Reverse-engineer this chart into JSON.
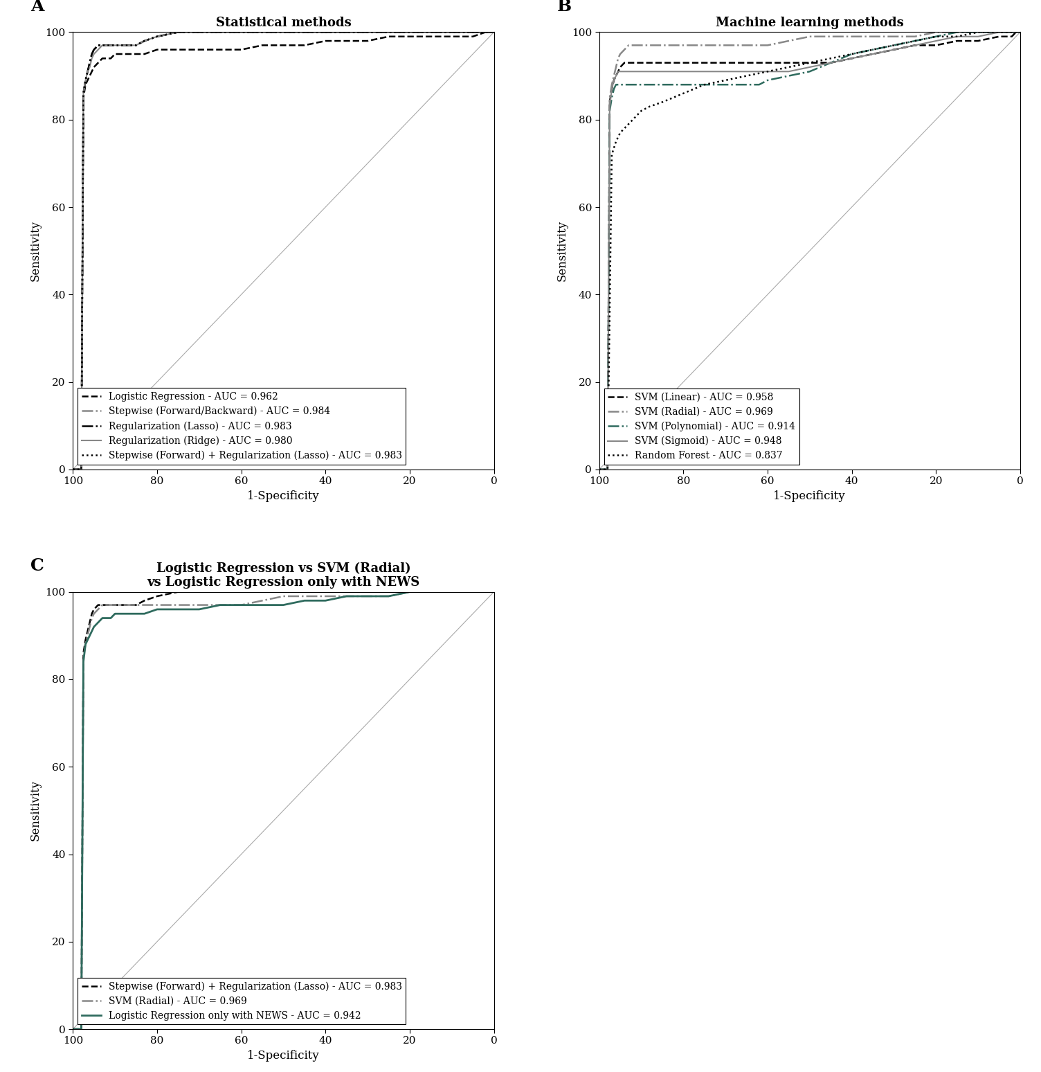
{
  "panel_A": {
    "title": "Statistical methods",
    "curves": [
      {
        "label": "Logistic Regression - AUC = 0.962",
        "color": "#000000",
        "linestyle": "dashed",
        "linewidth": 1.8,
        "dashes": [
          6,
          3
        ],
        "x": [
          100,
          98,
          97.5,
          97,
          96.5,
          96,
          95.5,
          95,
          94,
          93,
          92,
          91,
          90,
          89,
          88,
          87,
          86,
          85,
          83,
          80,
          75,
          70,
          65,
          60,
          55,
          50,
          45,
          40,
          35,
          30,
          25,
          20,
          15,
          10,
          5,
          2,
          1,
          0
        ],
        "y": [
          0,
          0,
          85,
          88,
          89,
          90,
          91,
          92,
          93,
          94,
          94,
          94,
          95,
          95,
          95,
          95,
          95,
          95,
          95,
          96,
          96,
          96,
          96,
          96,
          97,
          97,
          97,
          98,
          98,
          98,
          99,
          99,
          99,
          99,
          99,
          100,
          100,
          100
        ]
      },
      {
        "label": "Stepwise (Forward/Backward) - AUC = 0.984",
        "color": "#888888",
        "linestyle": "dashdot",
        "linewidth": 1.8,
        "dashes": [
          6,
          2,
          1,
          2
        ],
        "x": [
          100,
          98,
          97.5,
          97,
          96.5,
          96,
          95.5,
          95,
          94,
          93,
          92,
          91,
          90,
          89,
          88,
          87,
          86,
          85,
          83,
          80,
          75,
          70,
          65,
          60,
          55,
          50,
          45,
          40,
          35,
          30,
          25,
          20,
          15,
          10,
          5,
          2,
          1,
          0
        ],
        "y": [
          0,
          0,
          86,
          89,
          91,
          93,
          95,
          96,
          97,
          97,
          97,
          97,
          97,
          97,
          97,
          97,
          97,
          97,
          98,
          99,
          100,
          100,
          100,
          100,
          100,
          100,
          100,
          100,
          100,
          100,
          100,
          100,
          100,
          100,
          100,
          100,
          100,
          100
        ]
      },
      {
        "label": "Regularization (Lasso) - AUC = 0.983",
        "color": "#000000",
        "linestyle": "dashdot",
        "linewidth": 1.8,
        "dashes": [
          4,
          2,
          1,
          2
        ],
        "x": [
          100,
          98,
          97.5,
          97,
          96.5,
          96,
          95.5,
          95,
          94,
          93,
          92,
          91,
          90,
          89,
          88,
          87,
          86,
          85,
          83,
          80,
          75,
          70,
          65,
          60,
          55,
          50,
          45,
          40,
          35,
          30,
          25,
          20,
          15,
          10,
          5,
          2,
          1,
          0
        ],
        "y": [
          0,
          0,
          86,
          89,
          91,
          93,
          95,
          96,
          97,
          97,
          97,
          97,
          97,
          97,
          97,
          97,
          97,
          97,
          98,
          99,
          100,
          100,
          100,
          100,
          100,
          100,
          100,
          100,
          100,
          100,
          100,
          100,
          100,
          100,
          100,
          100,
          100,
          100
        ]
      },
      {
        "label": "Regularization (Ridge) - AUC = 0.980",
        "color": "#888888",
        "linestyle": "solid",
        "linewidth": 1.5,
        "dashes": [],
        "x": [
          100,
          98,
          97.5,
          97,
          96.5,
          96,
          95.5,
          95,
          94,
          93,
          92,
          91,
          90,
          89,
          88,
          87,
          86,
          85,
          83,
          80,
          75,
          70,
          65,
          60,
          55,
          50,
          45,
          40,
          35,
          30,
          25,
          20,
          15,
          10,
          5,
          2,
          1,
          0
        ],
        "y": [
          0,
          0,
          86,
          89,
          91,
          92,
          94,
          95,
          96,
          97,
          97,
          97,
          97,
          97,
          97,
          97,
          97,
          97,
          98,
          99,
          100,
          100,
          100,
          100,
          100,
          100,
          100,
          100,
          100,
          100,
          100,
          100,
          100,
          100,
          100,
          100,
          100,
          100
        ]
      },
      {
        "label": "Stepwise (Forward) + Regularization (Lasso) - AUC = 0.983",
        "color": "#000000",
        "linestyle": "dotted",
        "linewidth": 1.8,
        "dashes": [
          1,
          2
        ],
        "x": [
          100,
          98,
          97.5,
          97,
          96.5,
          96,
          95.5,
          95,
          94,
          93,
          92,
          91,
          90,
          89,
          88,
          87,
          86,
          85,
          83,
          80,
          75,
          70,
          65,
          60,
          55,
          50,
          45,
          40,
          35,
          30,
          25,
          20,
          15,
          10,
          5,
          2,
          1,
          0
        ],
        "y": [
          0,
          0,
          86,
          89,
          91,
          93,
          95,
          96,
          97,
          97,
          97,
          97,
          97,
          97,
          97,
          97,
          97,
          97,
          98,
          99,
          100,
          100,
          100,
          100,
          100,
          100,
          100,
          100,
          100,
          100,
          100,
          100,
          100,
          100,
          100,
          100,
          100,
          100
        ]
      }
    ]
  },
  "panel_B": {
    "title": "Machine learning methods",
    "curves": [
      {
        "label": "SVM (Linear) - AUC = 0.958",
        "color": "#000000",
        "linestyle": "dashed",
        "linewidth": 1.8,
        "dashes": [
          6,
          3
        ],
        "x": [
          100,
          98,
          97.5,
          97,
          96.5,
          96,
          95.5,
          95,
          94,
          93,
          92,
          91,
          90,
          89,
          88,
          87,
          86,
          85,
          83,
          80,
          75,
          70,
          65,
          60,
          55,
          50,
          45,
          40,
          35,
          30,
          25,
          20,
          15,
          10,
          5,
          2,
          1,
          0
        ],
        "y": [
          0,
          0,
          84,
          87,
          89,
          90,
          91,
          92,
          93,
          93,
          93,
          93,
          93,
          93,
          93,
          93,
          93,
          93,
          93,
          93,
          93,
          93,
          93,
          93,
          93,
          93,
          93,
          94,
          95,
          96,
          97,
          97,
          98,
          98,
          99,
          99,
          100,
          100
        ]
      },
      {
        "label": "SVM (Radial) - AUC = 0.969",
        "color": "#888888",
        "linestyle": "dashdot",
        "linewidth": 1.8,
        "dashes": [
          6,
          2,
          1,
          2
        ],
        "x": [
          100,
          98,
          97.5,
          97,
          96.5,
          96,
          95.5,
          95,
          94,
          93,
          92,
          91,
          90,
          89,
          88,
          87,
          86,
          85,
          83,
          80,
          75,
          70,
          65,
          60,
          55,
          50,
          45,
          40,
          35,
          30,
          25,
          20,
          15,
          10,
          5,
          2,
          1,
          0
        ],
        "y": [
          0,
          0,
          85,
          88,
          90,
          92,
          94,
          95,
          96,
          97,
          97,
          97,
          97,
          97,
          97,
          97,
          97,
          97,
          97,
          97,
          97,
          97,
          97,
          97,
          98,
          99,
          99,
          99,
          99,
          99,
          99,
          100,
          100,
          100,
          100,
          100,
          100,
          100
        ]
      },
      {
        "label": "SVM (Polynomial) - AUC = 0.914",
        "color": "#2F6B5E",
        "linestyle": "dashdot",
        "linewidth": 1.8,
        "dashes": [
          4,
          2,
          1,
          2
        ],
        "x": [
          100,
          98,
          97.5,
          97,
          96.5,
          96,
          95.5,
          95,
          94,
          93,
          92,
          91,
          90,
          89,
          88,
          87,
          86,
          85,
          83,
          80,
          75,
          70,
          65,
          62,
          60,
          55,
          50,
          45,
          40,
          35,
          30,
          25,
          20,
          15,
          10,
          5,
          2,
          1,
          0
        ],
        "y": [
          0,
          0,
          82,
          85,
          87,
          88,
          88,
          88,
          88,
          88,
          88,
          88,
          88,
          88,
          88,
          88,
          88,
          88,
          88,
          88,
          88,
          88,
          88,
          88,
          89,
          90,
          91,
          93,
          95,
          96,
          97,
          98,
          99,
          100,
          100,
          100,
          100,
          100,
          100
        ]
      },
      {
        "label": "SVM (Sigmoid) - AUC = 0.948",
        "color": "#888888",
        "linestyle": "solid",
        "linewidth": 1.5,
        "dashes": [],
        "x": [
          100,
          98,
          97.5,
          97,
          96.5,
          96,
          95.5,
          95,
          94,
          93,
          92,
          91,
          90,
          89,
          88,
          87,
          86,
          85,
          83,
          80,
          75,
          70,
          65,
          60,
          55,
          50,
          45,
          40,
          35,
          30,
          25,
          20,
          15,
          10,
          5,
          2,
          1,
          0
        ],
        "y": [
          0,
          0,
          83,
          87,
          89,
          90,
          91,
          91,
          91,
          91,
          91,
          91,
          91,
          91,
          91,
          91,
          91,
          91,
          91,
          91,
          91,
          91,
          91,
          91,
          91,
          92,
          93,
          94,
          95,
          96,
          97,
          98,
          99,
          99,
          100,
          100,
          100,
          100
        ]
      },
      {
        "label": "Random Forest - AUC = 0.837",
        "color": "#000000",
        "linestyle": "dotted",
        "linewidth": 1.8,
        "dashes": [
          1,
          2
        ],
        "x": [
          100,
          98,
          97,
          96,
          95,
          94,
          93,
          92,
          91,
          90,
          88,
          85,
          80,
          75,
          70,
          65,
          60,
          55,
          50,
          45,
          40,
          35,
          30,
          25,
          20,
          15,
          10,
          5,
          2,
          1,
          0
        ],
        "y": [
          0,
          0,
          72,
          75,
          77,
          78,
          79,
          80,
          81,
          82,
          83,
          84,
          86,
          88,
          89,
          90,
          91,
          92,
          93,
          94,
          95,
          96,
          97,
          98,
          99,
          99,
          100,
          100,
          100,
          100,
          100
        ]
      }
    ]
  },
  "panel_C": {
    "title": "Logistic Regression vs SVM (Radial)\nvs Logistic Regression only with NEWS",
    "curves": [
      {
        "label": "Stepwise (Forward) + Regularization (Lasso) - AUC = 0.983",
        "color": "#000000",
        "linestyle": "dashed",
        "linewidth": 1.8,
        "dashes": [
          6,
          3
        ],
        "x": [
          100,
          98,
          97.5,
          97,
          96.5,
          96,
          95.5,
          95,
          94,
          93,
          92,
          91,
          90,
          89,
          88,
          87,
          86,
          85,
          83,
          80,
          75,
          70,
          65,
          60,
          55,
          50,
          45,
          40,
          35,
          30,
          25,
          20,
          15,
          10,
          5,
          2,
          1,
          0
        ],
        "y": [
          0,
          0,
          86,
          89,
          91,
          93,
          95,
          96,
          97,
          97,
          97,
          97,
          97,
          97,
          97,
          97,
          97,
          97,
          98,
          99,
          100,
          100,
          100,
          100,
          100,
          100,
          100,
          100,
          100,
          100,
          100,
          100,
          100,
          100,
          100,
          100,
          100,
          100
        ]
      },
      {
        "label": "SVM (Radial) - AUC = 0.969",
        "color": "#888888",
        "linestyle": "dashdot",
        "linewidth": 1.8,
        "dashes": [
          6,
          2,
          1,
          2
        ],
        "x": [
          100,
          98,
          97.5,
          97,
          96.5,
          96,
          95.5,
          95,
          94,
          93,
          92,
          91,
          90,
          89,
          88,
          87,
          86,
          85,
          83,
          80,
          75,
          70,
          65,
          60,
          55,
          50,
          45,
          40,
          35,
          30,
          25,
          20,
          15,
          10,
          5,
          2,
          1,
          0
        ],
        "y": [
          0,
          0,
          85,
          88,
          90,
          92,
          94,
          95,
          96,
          97,
          97,
          97,
          97,
          97,
          97,
          97,
          97,
          97,
          97,
          97,
          97,
          97,
          97,
          97,
          98,
          99,
          99,
          99,
          99,
          99,
          99,
          100,
          100,
          100,
          100,
          100,
          100,
          100
        ]
      },
      {
        "label": "Logistic Regression only with NEWS - AUC = 0.942",
        "color": "#2F6B5E",
        "linestyle": "solid",
        "linewidth": 2.0,
        "dashes": [],
        "x": [
          100,
          98,
          97.5,
          97,
          96.5,
          96,
          95.5,
          95,
          94,
          93,
          92,
          91,
          90,
          89,
          88,
          87,
          86,
          85,
          83,
          80,
          75,
          70,
          65,
          60,
          55,
          50,
          45,
          40,
          35,
          30,
          25,
          20,
          15,
          10,
          5,
          2,
          1,
          0
        ],
        "y": [
          0,
          0,
          84,
          88,
          89,
          90,
          91,
          92,
          93,
          94,
          94,
          94,
          95,
          95,
          95,
          95,
          95,
          95,
          95,
          96,
          96,
          96,
          97,
          97,
          97,
          97,
          98,
          98,
          99,
          99,
          99,
          100,
          100,
          100,
          100,
          100,
          100,
          100
        ]
      }
    ]
  },
  "diagonal": {
    "color": "#AAAAAA",
    "linewidth": 0.8
  },
  "label_fontsize": 12,
  "tick_fontsize": 11,
  "title_fontsize": 13,
  "legend_fontsize": 10,
  "panel_label_fontsize": 18
}
